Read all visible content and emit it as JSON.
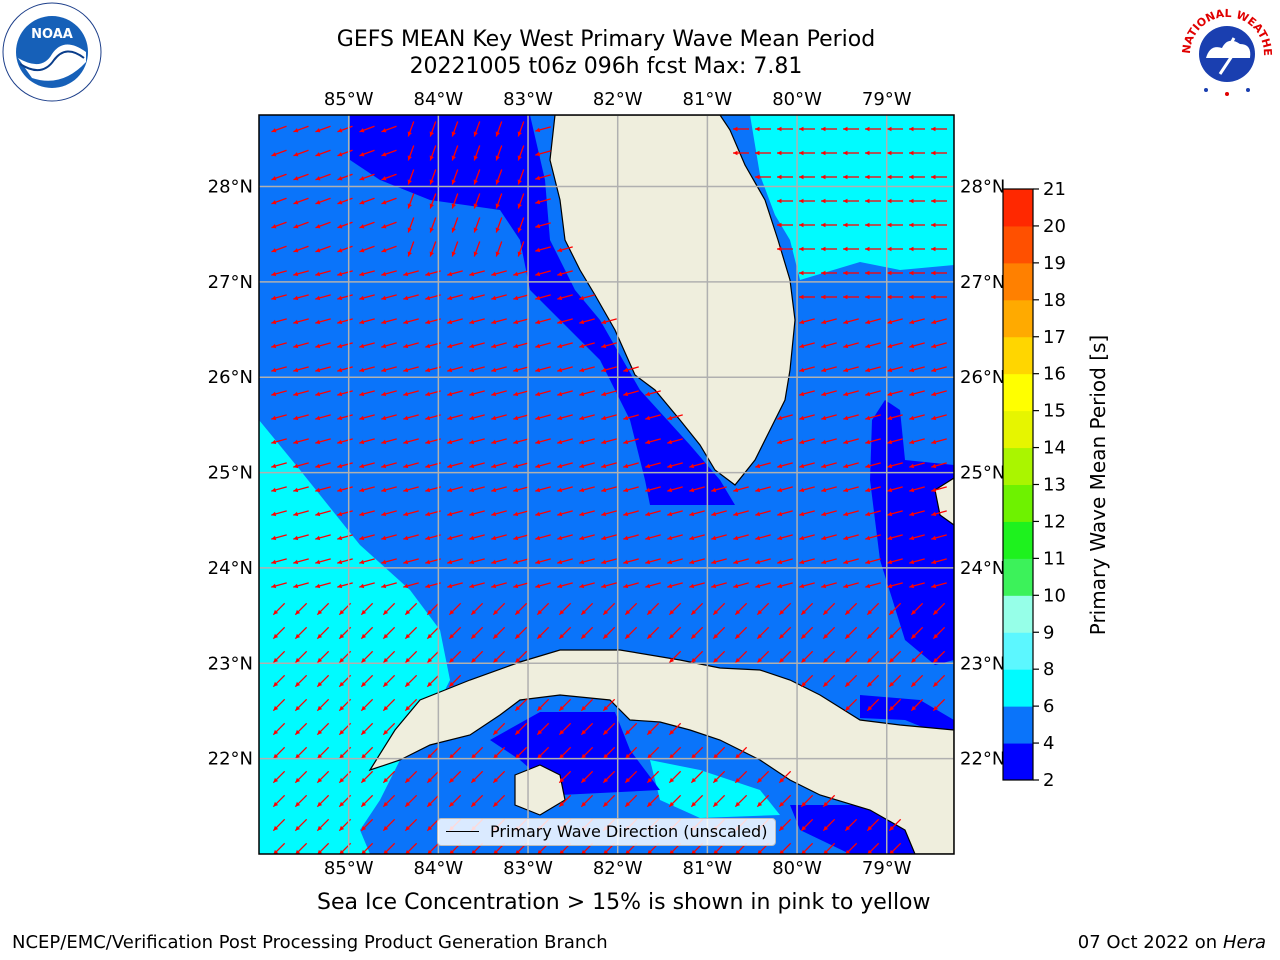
{
  "title_line1": "GEFS MEAN Key West Primary Wave Mean Period",
  "title_line2": "20221005 t06z 096h fcst   Max: 7.81",
  "colors": {
    "land": "#efeedd",
    "band_2_4": "#0000ff",
    "band_4_6": "#0a74fa",
    "band_6_8": "#00fbff",
    "arrow": "#ff0000",
    "grid": "#b0b0b0"
  },
  "map": {
    "lon_range": [
      -86.0,
      -78.25
    ],
    "lat_range": [
      21.0,
      28.75
    ],
    "lon_ticks": [
      -85,
      -84,
      -83,
      -82,
      -81,
      -80,
      -79
    ],
    "lat_ticks": [
      22,
      23,
      24,
      25,
      26,
      27,
      28
    ],
    "lon_tick_labels": [
      "85°W",
      "84°W",
      "83°W",
      "82°W",
      "81°W",
      "80°W",
      "79°W"
    ],
    "lat_tick_labels": [
      "22°N",
      "23°N",
      "24°N",
      "25°N",
      "26°N",
      "27°N",
      "28°N"
    ],
    "grid": true
  },
  "colorbar": {
    "label": "Primary Wave Mean Period [s]",
    "levels": [
      2,
      4,
      6,
      8,
      9,
      10,
      11,
      12,
      13,
      14,
      15,
      16,
      17,
      18,
      19,
      20,
      21
    ],
    "tick_labels": [
      "2",
      "4",
      "6",
      "8",
      "9",
      "10",
      "11",
      "12",
      "13",
      "14",
      "15",
      "16",
      "17",
      "18",
      "19",
      "20",
      "21"
    ],
    "colors": [
      "#0000ff",
      "#0a74fa",
      "#00fbff",
      "#5cf7ff",
      "#96ffe8",
      "#3cf25a",
      "#1ef21e",
      "#6ef200",
      "#aaf500",
      "#e6f500",
      "#ffff00",
      "#ffd600",
      "#ffaa00",
      "#ff8000",
      "#ff5000",
      "#ff2800"
    ]
  },
  "legend": {
    "label": "Primary Wave Direction (unscaled)",
    "location": "bottom-center"
  },
  "footer": {
    "note": "Sea Ice Concentration > 15% is shown in pink to yellow",
    "left": "NCEP/EMC/Verification Post Processing Product Generation Branch",
    "right_date": "07 Oct 2022 on ",
    "right_host": "Hera"
  },
  "logos": {
    "noaa": "NOAA",
    "nws": "NATIONAL WEATHER SERVICE"
  }
}
